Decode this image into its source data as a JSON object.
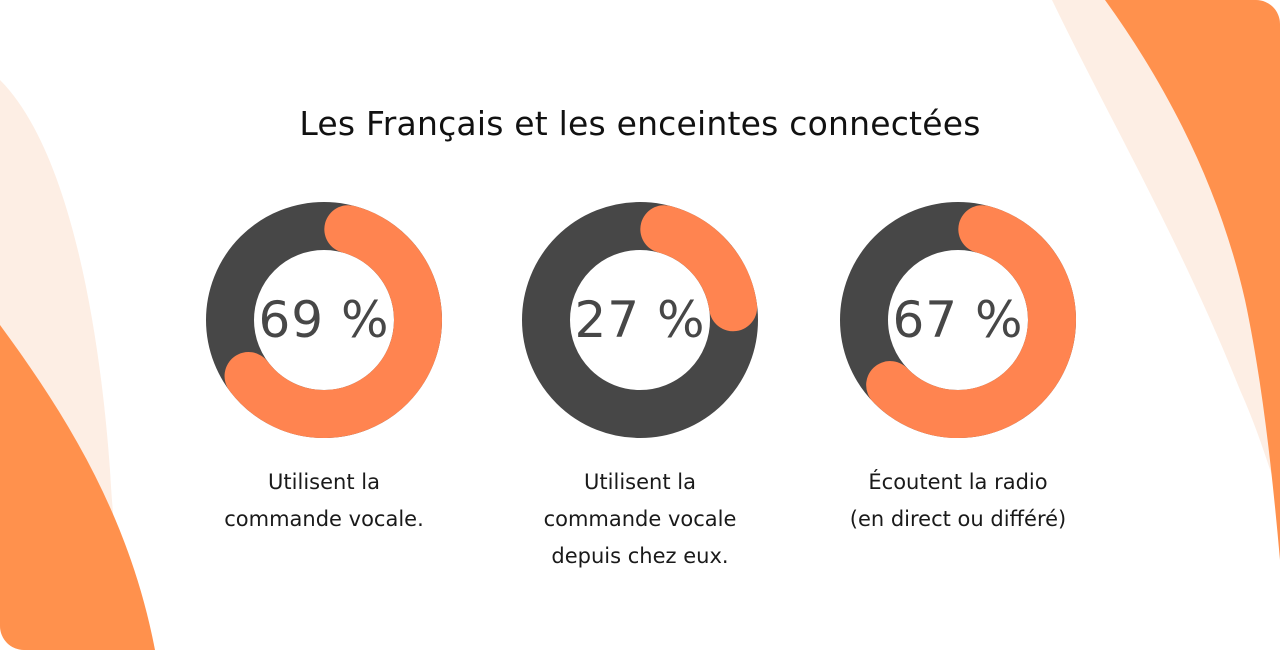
{
  "chart_data": {
    "type": "pie",
    "title": "Les Français et les enceintes connectées",
    "charts": [
      {
        "value": 69,
        "label": "69 %",
        "caption_lines": [
          "Utilisent la",
          "commande vocale."
        ]
      },
      {
        "value": 27,
        "label": "27 %",
        "caption_lines": [
          "Utilisent la",
          "commande vocale",
          "depuis chez eux."
        ]
      },
      {
        "value": 67,
        "label": "67 %",
        "caption_lines": [
          "Écoutent la radio",
          "(en direct ou différé)"
        ]
      }
    ],
    "unit": "%",
    "max": 100
  },
  "colors": {
    "accent": "#ff8450",
    "track": "#474747",
    "background": "#ffffff",
    "blob_light": "#fdeee4",
    "blob_orange": "#ff914d"
  }
}
